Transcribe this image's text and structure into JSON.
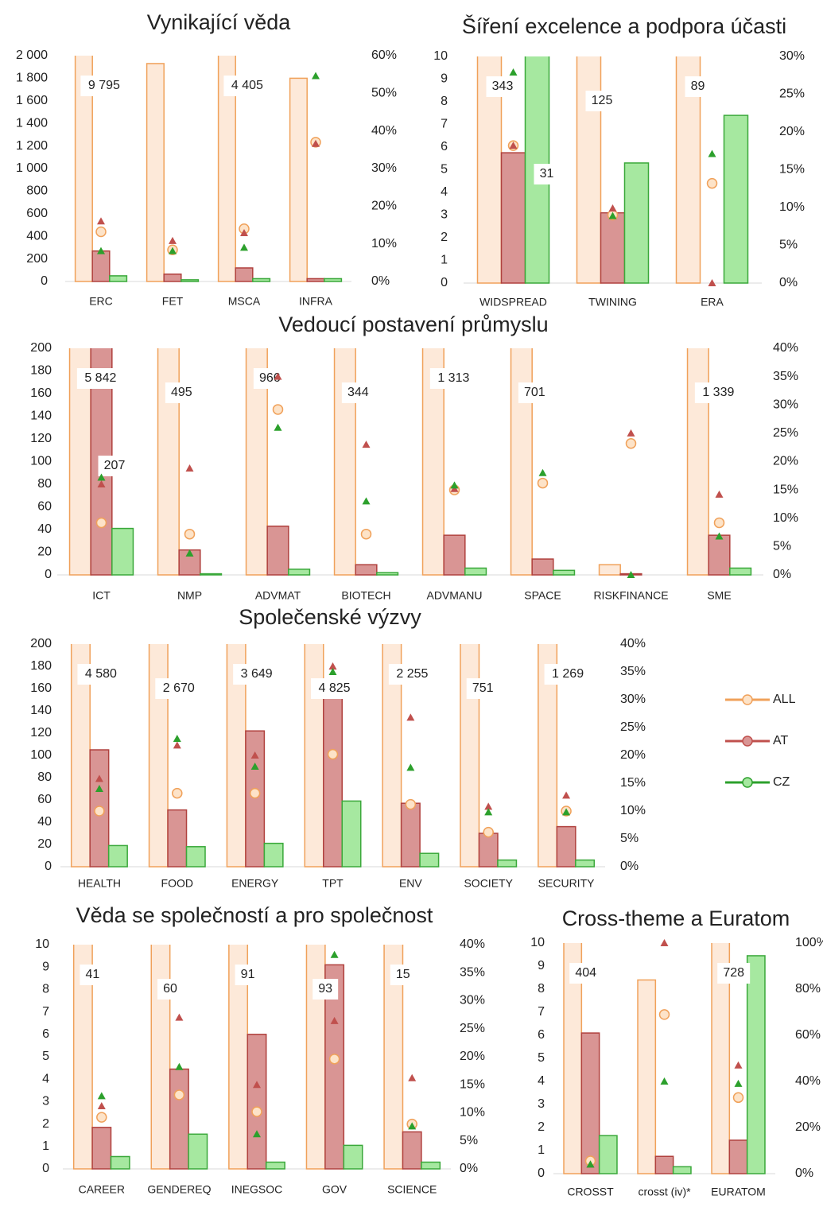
{
  "chart_data": [
    {
      "type": "bar",
      "title": "Vynikající věda",
      "categories": [
        "ERC",
        "FET",
        "MSCA",
        "INFRA"
      ],
      "ylim": [
        0,
        2000
      ],
      "yticks": [
        0,
        200,
        400,
        600,
        800,
        {
          "value": 1000,
          "label": "1 000"
        },
        {
          "value": 1200,
          "label": "1 200"
        },
        {
          "value": 1400,
          "label": "1 400"
        },
        {
          "value": 1600,
          "label": "1 600"
        },
        {
          "value": 1800,
          "label": "1 800"
        },
        {
          "value": 2000,
          "label": "2 000"
        }
      ],
      "y2lim": [
        0,
        60
      ],
      "y2ticks": [
        {
          "value": 0,
          "label": "0%"
        },
        {
          "value": 10,
          "label": "10%"
        },
        {
          "value": 20,
          "label": "20%"
        },
        {
          "value": 30,
          "label": "30%"
        },
        {
          "value": 40,
          "label": "40%"
        },
        {
          "value": 50,
          "label": "50%"
        },
        {
          "value": 60,
          "label": "60%"
        }
      ],
      "series": [
        {
          "color": "#f0a15a",
          "fill": "#fde9d9",
          "values": [
            9795,
            1930,
            4405,
            1800
          ],
          "value_labels": [
            "9 795",
            null,
            "4 405",
            null
          ]
        },
        {
          "color": "#b0413e",
          "fill": "#d99594",
          "values": [
            270,
            65,
            120,
            25
          ]
        },
        {
          "color": "#3aa83a",
          "fill": "#a6e8a0",
          "values": [
            50,
            15,
            25,
            25
          ]
        },
        {
          "axis": "y2",
          "marker": "circle",
          "color": "#f0a15a",
          "fill": "#fde3c8",
          "values": [
            13.2,
            8.4,
            14,
            37
          ]
        },
        {
          "axis": "y2",
          "marker": "triangle",
          "color": "#c0504d",
          "values": [
            16,
            10.8,
            12.9,
            36.6
          ]
        },
        {
          "axis": "y2",
          "marker": "triangle",
          "color": "#2ca02c",
          "values": [
            8.1,
            8.1,
            9,
            54.6
          ]
        }
      ]
    },
    {
      "type": "bar",
      "title": "Šíření excelence a podpora účasti",
      "categories": [
        "WIDSPREAD",
        "TWINING",
        "ERA"
      ],
      "ylim": [
        0,
        10
      ],
      "yticks": [
        0,
        1,
        2,
        3,
        4,
        5,
        6,
        7,
        8,
        9,
        10
      ],
      "y2lim": [
        0,
        30
      ],
      "y2ticks": [
        {
          "value": 0,
          "label": "0%"
        },
        {
          "value": 5,
          "label": "5%"
        },
        {
          "value": 10,
          "label": "10%"
        },
        {
          "value": 15,
          "label": "15%"
        },
        {
          "value": 20,
          "label": "20%"
        },
        {
          "value": 25,
          "label": "25%"
        },
        {
          "value": 30,
          "label": "30%"
        }
      ],
      "series": [
        {
          "color": "#f0a15a",
          "fill": "#fde9d9",
          "values": [
            343,
            125,
            89
          ],
          "value_labels": [
            "343",
            "125",
            "89"
          ]
        },
        {
          "color": "#b0413e",
          "fill": "#d99594",
          "values": [
            5.75,
            3.1,
            0
          ]
        },
        {
          "color": "#3aa83a",
          "fill": "#a6e8a0",
          "values": [
            31,
            5.3,
            7.4
          ],
          "value_labels": [
            "31",
            null,
            null
          ]
        },
        {
          "axis": "y2",
          "marker": "circle",
          "color": "#f0a15a",
          "fill": "#fde3c8",
          "values": [
            18.2,
            9,
            13.2
          ]
        },
        {
          "axis": "y2",
          "marker": "triangle",
          "color": "#c0504d",
          "values": [
            18.2,
            9.9,
            0
          ]
        },
        {
          "axis": "y2",
          "marker": "triangle",
          "color": "#2ca02c",
          "values": [
            27.9,
            8.9,
            17.1
          ]
        }
      ]
    },
    {
      "type": "bar",
      "title": "Vedoucí postavení průmyslu",
      "categories": [
        "ICT",
        "NMP",
        "ADVMAT",
        "BIOTECH",
        "ADVMANU",
        "SPACE",
        "RISKFINANCE",
        "SME"
      ],
      "ylim": [
        0,
        200
      ],
      "yticks": [
        0,
        20,
        40,
        60,
        80,
        100,
        120,
        140,
        160,
        180,
        200
      ],
      "y2lim": [
        0,
        40
      ],
      "y2ticks": [
        {
          "value": 0,
          "label": "0%"
        },
        {
          "value": 5,
          "label": "5%"
        },
        {
          "value": 10,
          "label": "10%"
        },
        {
          "value": 15,
          "label": "15%"
        },
        {
          "value": 20,
          "label": "20%"
        },
        {
          "value": 25,
          "label": "25%"
        },
        {
          "value": 30,
          "label": "30%"
        },
        {
          "value": 35,
          "label": "35%"
        },
        {
          "value": 40,
          "label": "40%"
        }
      ],
      "series": [
        {
          "color": "#f0a15a",
          "fill": "#fde9d9",
          "values": [
            5842,
            495,
            966,
            344,
            1313,
            701,
            9,
            1339
          ],
          "value_labels": [
            "5 842",
            "495",
            "966",
            "344",
            "1 313",
            "701",
            null,
            "1 339"
          ]
        },
        {
          "color": "#b0413e",
          "fill": "#d99594",
          "values": [
            207,
            22,
            43,
            9,
            35,
            14,
            1,
            35
          ],
          "value_labels": [
            "207",
            null,
            null,
            null,
            null,
            null,
            null,
            null
          ]
        },
        {
          "color": "#3aa83a",
          "fill": "#a6e8a0",
          "values": [
            41,
            1,
            5,
            2,
            6,
            4,
            0,
            6
          ]
        },
        {
          "axis": "y2",
          "marker": "circle",
          "color": "#f0a15a",
          "fill": "#fde3c8",
          "values": [
            9.2,
            7.2,
            29.2,
            7.2,
            15,
            16.2,
            23.2,
            9.2
          ]
        },
        {
          "axis": "y2",
          "marker": "triangle",
          "color": "#c0504d",
          "values": [
            16,
            18.8,
            35,
            23,
            15.2,
            null,
            25,
            14.2
          ]
        },
        {
          "axis": "y2",
          "marker": "triangle",
          "color": "#2ca02c",
          "values": [
            17.2,
            3.8,
            26,
            13,
            15.8,
            18,
            0,
            6.8
          ]
        }
      ]
    },
    {
      "type": "bar",
      "title": "Společenské výzvy",
      "categories": [
        "HEALTH",
        "FOOD",
        "ENERGY",
        "TPT",
        "ENV",
        "SOCIETY",
        "SECURITY"
      ],
      "ylim": [
        0,
        200
      ],
      "yticks": [
        0,
        20,
        40,
        60,
        80,
        100,
        120,
        140,
        160,
        180,
        200
      ],
      "y2lim": [
        0,
        40
      ],
      "y2ticks": [
        {
          "value": 0,
          "label": "0%"
        },
        {
          "value": 5,
          "label": "5%"
        },
        {
          "value": 10,
          "label": "10%"
        },
        {
          "value": 15,
          "label": "15%"
        },
        {
          "value": 20,
          "label": "20%"
        },
        {
          "value": 25,
          "label": "25%"
        },
        {
          "value": 30,
          "label": "30%"
        },
        {
          "value": 35,
          "label": "35%"
        },
        {
          "value": 40,
          "label": "40%"
        }
      ],
      "legend": "right",
      "series": [
        {
          "color": "#f0a15a",
          "fill": "#fde9d9",
          "values": [
            4580,
            2670,
            3649,
            4825,
            2255,
            751,
            1269
          ],
          "value_labels": [
            "4 580",
            "2 670",
            "3 649",
            "4 825",
            "2 255",
            "751",
            "1 269"
          ]
        },
        {
          "color": "#b0413e",
          "fill": "#d99594",
          "values": [
            105,
            51,
            122,
            156,
            57,
            30,
            36
          ]
        },
        {
          "color": "#3aa83a",
          "fill": "#a6e8a0",
          "values": [
            19,
            18,
            21,
            59,
            12,
            6,
            6
          ]
        },
        {
          "name": "ALL",
          "axis": "y2",
          "marker": "circle",
          "color": "#f0a15a",
          "fill": "#fde3c8",
          "values": [
            10,
            13.2,
            13.2,
            20.2,
            11.2,
            6.2,
            10
          ]
        },
        {
          "name": "AT",
          "axis": "y2",
          "marker": "triangle",
          "color": "#c0504d",
          "fill": "#d99594",
          "values": [
            15.8,
            21.8,
            20,
            36,
            26.8,
            10.8,
            12.8
          ]
        },
        {
          "name": "CZ",
          "axis": "y2",
          "marker": "triangle",
          "color": "#2ca02c",
          "fill": "#a6e8a0",
          "values": [
            14,
            23,
            18,
            35,
            17.8,
            9.8,
            9.8
          ]
        }
      ]
    },
    {
      "type": "bar",
      "title": "Věda se společností a pro společnost",
      "categories": [
        "CAREER",
        "GENDEREQ",
        "INEGSOC",
        "GOV",
        "SCIENCE"
      ],
      "ylim": [
        0,
        10
      ],
      "yticks": [
        0,
        1,
        2,
        3,
        4,
        5,
        6,
        7,
        8,
        9,
        10
      ],
      "y2lim": [
        0,
        40
      ],
      "y2ticks": [
        {
          "value": 0,
          "label": "0%"
        },
        {
          "value": 5,
          "label": "5%"
        },
        {
          "value": 10,
          "label": "10%"
        },
        {
          "value": 15,
          "label": "15%"
        },
        {
          "value": 20,
          "label": "20%"
        },
        {
          "value": 25,
          "label": "25%"
        },
        {
          "value": 30,
          "label": "30%"
        },
        {
          "value": 35,
          "label": "35%"
        },
        {
          "value": 40,
          "label": "40%"
        }
      ],
      "series": [
        {
          "color": "#f0a15a",
          "fill": "#fde9d9",
          "values": [
            41,
            60,
            91,
            93,
            15
          ],
          "value_labels": [
            "41",
            "60",
            "91",
            "93",
            "15"
          ]
        },
        {
          "color": "#b0413e",
          "fill": "#d99594",
          "values": [
            1.85,
            4.45,
            6.0,
            9.1,
            1.65
          ]
        },
        {
          "color": "#3aa83a",
          "fill": "#a6e8a0",
          "values": [
            0.55,
            1.55,
            0.3,
            1.05,
            0.3
          ]
        },
        {
          "axis": "y2",
          "marker": "circle",
          "color": "#f0a15a",
          "fill": "#fde3c8",
          "values": [
            9.2,
            13.2,
            10.2,
            19.6,
            8
          ]
        },
        {
          "axis": "y2",
          "marker": "triangle",
          "color": "#c0504d",
          "values": [
            11.2,
            27,
            15,
            26.4,
            16.2
          ]
        },
        {
          "axis": "y2",
          "marker": "triangle",
          "color": "#2ca02c",
          "values": [
            13,
            18.2,
            6.2,
            38.2,
            7.6
          ]
        }
      ]
    },
    {
      "type": "bar",
      "title": "Cross-theme a Euratom",
      "categories": [
        "CROSST",
        "crosst (iv)*",
        "EURATOM"
      ],
      "ylim": [
        0,
        10
      ],
      "yticks": [
        0,
        1,
        2,
        3,
        4,
        5,
        6,
        7,
        8,
        9,
        10
      ],
      "y2lim": [
        0,
        100
      ],
      "y2ticks": [
        {
          "value": 0,
          "label": "0%"
        },
        {
          "value": 20,
          "label": "20%"
        },
        {
          "value": 40,
          "label": "40%"
        },
        {
          "value": 60,
          "label": "60%"
        },
        {
          "value": 80,
          "label": "80%"
        },
        {
          "value": 100,
          "label": "100%"
        }
      ],
      "series": [
        {
          "color": "#f0a15a",
          "fill": "#fde9d9",
          "values": [
            404,
            8.4,
            728
          ],
          "value_labels": [
            "404",
            null,
            "728"
          ]
        },
        {
          "color": "#b0413e",
          "fill": "#d99594",
          "values": [
            6.1,
            0.75,
            1.45
          ]
        },
        {
          "color": "#3aa83a",
          "fill": "#a6e8a0",
          "values": [
            1.65,
            0.3,
            9.45
          ]
        },
        {
          "axis": "y2",
          "marker": "circle",
          "color": "#f0a15a",
          "fill": "#fde3c8",
          "values": [
            5.5,
            69,
            33
          ]
        },
        {
          "axis": "y2",
          "marker": "triangle",
          "color": "#c0504d",
          "values": [
            4,
            100,
            47
          ]
        },
        {
          "axis": "y2",
          "marker": "triangle",
          "color": "#2ca02c",
          "values": [
            4,
            40,
            39
          ]
        }
      ]
    }
  ]
}
